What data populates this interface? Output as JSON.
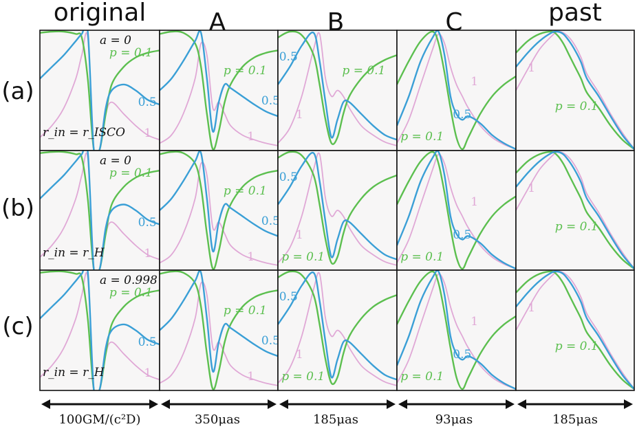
{
  "chart_data": {
    "type": "line",
    "columns": [
      "original",
      "A",
      "B",
      "C",
      "past"
    ],
    "rows": [
      "(a)",
      "(b)",
      "(c)"
    ],
    "scales": [
      "100GM/(c²D)",
      "350μas",
      "185μas",
      "93μas",
      "185μas"
    ],
    "series_colors": {
      "p=0.1": "#5cbf4f",
      "0.5": "#3a9fd6",
      "1": "#e0a8d6"
    },
    "panel_labels": {
      "row0": {
        "spin": "a = 0",
        "rin": "r_in = r_ISCO"
      },
      "row1": {
        "spin": "a = 0",
        "rin": "r_in = r_H"
      },
      "row2": {
        "spin": "a = 0.998",
        "rin": "r_in = r_H"
      }
    },
    "curve_labels": {
      "p01": "p = 0.1",
      "p05": "0.5",
      "p1": "1"
    },
    "x": [
      0,
      0.1,
      0.2,
      0.3,
      0.35,
      0.4,
      0.45,
      0.5,
      0.55,
      0.6,
      0.7,
      0.8,
      0.9,
      1.0
    ],
    "profiles": {
      "original": {
        "p=0.1": [
          0.99,
          1.0,
          1.0,
          0.98,
          0.95,
          0.6,
          0.0,
          0.0,
          0.3,
          0.55,
          0.7,
          0.78,
          0.82,
          0.84
        ],
        "0.5": [
          0.6,
          0.7,
          0.8,
          0.92,
          0.98,
          1.0,
          0.0,
          0.0,
          0.35,
          0.5,
          0.55,
          0.5,
          0.42,
          0.38
        ],
        "1": [
          0.1,
          0.2,
          0.35,
          0.6,
          0.8,
          0.95,
          0.0,
          0.0,
          0.3,
          0.4,
          0.3,
          0.2,
          0.12,
          0.08
        ]
      },
      "A": {
        "p=0.1": [
          0.98,
          1.0,
          0.99,
          0.9,
          0.7,
          0.3,
          0.0,
          0.15,
          0.4,
          0.55,
          0.7,
          0.78,
          0.82,
          0.84
        ],
        "0.5": [
          0.5,
          0.6,
          0.75,
          0.92,
          0.99,
          0.6,
          0.15,
          0.4,
          0.55,
          0.52,
          0.45,
          0.38,
          0.32,
          0.28
        ],
        "1": [
          0.05,
          0.12,
          0.3,
          0.6,
          0.9,
          0.8,
          0.35,
          0.4,
          0.3,
          0.2,
          0.12,
          0.08,
          0.05,
          0.03
        ]
      },
      "B": {
        "p=0.1": [
          0.95,
          1.0,
          0.97,
          0.8,
          0.55,
          0.25,
          0.05,
          0.1,
          0.3,
          0.45,
          0.6,
          0.7,
          0.76,
          0.8
        ],
        "0.5": [
          0.55,
          0.7,
          0.88,
          0.99,
          0.75,
          0.4,
          0.1,
          0.25,
          0.4,
          0.4,
          0.3,
          0.2,
          0.12,
          0.08
        ],
        "1": [
          0.05,
          0.18,
          0.45,
          0.85,
          0.98,
          0.6,
          0.45,
          0.5,
          0.45,
          0.35,
          0.2,
          0.12,
          0.06,
          0.03
        ]
      },
      "C": {
        "p=0.1": [
          0.55,
          0.75,
          0.92,
          1.0,
          0.9,
          0.65,
          0.35,
          0.1,
          0.0,
          0.1,
          0.3,
          0.45,
          0.55,
          0.62
        ],
        "0.5": [
          0.2,
          0.45,
          0.75,
          0.95,
          1.0,
          0.8,
          0.45,
          0.3,
          0.25,
          0.28,
          0.22,
          0.12,
          0.05,
          0.0
        ],
        "1": [
          0.05,
          0.25,
          0.55,
          0.85,
          0.98,
          0.9,
          0.7,
          0.55,
          0.45,
          0.35,
          0.2,
          0.1,
          0.04,
          0.0
        ]
      },
      "past": {
        "p=0.1": [
          0.82,
          0.92,
          0.98,
          1.0,
          0.97,
          0.9,
          0.8,
          0.7,
          0.6,
          0.48,
          0.35,
          0.2,
          0.08,
          0.0
        ],
        "0.5": [
          0.7,
          0.82,
          0.92,
          0.99,
          1.0,
          0.98,
          0.92,
          0.84,
          0.74,
          0.6,
          0.45,
          0.28,
          0.12,
          0.0
        ],
        "1": [
          0.5,
          0.68,
          0.85,
          0.96,
          1.0,
          0.99,
          0.95,
          0.88,
          0.78,
          0.64,
          0.48,
          0.3,
          0.14,
          0.0
        ]
      }
    },
    "ylim": [
      0,
      1
    ],
    "grid": false,
    "xlabel": "",
    "ylabel": ""
  }
}
